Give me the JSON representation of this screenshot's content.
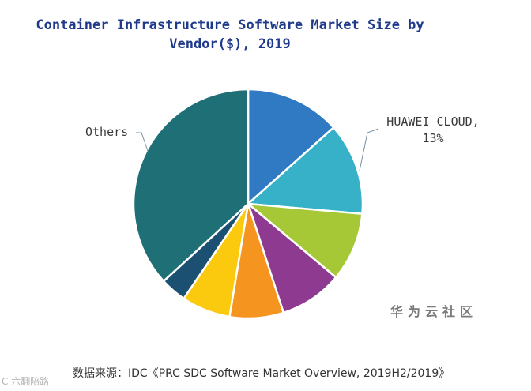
{
  "chart_data": {
    "type": "pie",
    "title_line1": "Container Infrastructure Software Market Size by",
    "title_line2": "Vendor($), 2019",
    "slices": [
      {
        "label": "",
        "value": 13.4,
        "color": "#2f7ac2"
      },
      {
        "label": "HUAWEI CLOUD, 13%",
        "value": 13.0,
        "color": "#37b1c8"
      },
      {
        "label": "",
        "value": 9.7,
        "color": "#a6c837"
      },
      {
        "label": "",
        "value": 8.9,
        "color": "#8f3a91"
      },
      {
        "label": "",
        "value": 7.6,
        "color": "#f5941f"
      },
      {
        "label": "",
        "value": 6.9,
        "color": "#fbc90e"
      },
      {
        "label": "",
        "value": 3.7,
        "color": "#1c5073"
      },
      {
        "label": "Others",
        "value": 36.8,
        "color": "#1f6f77"
      }
    ]
  },
  "labels": {
    "huawei_line1": "HUAWEI CLOUD,",
    "huawei_line2": "13%",
    "others": "Others"
  },
  "watermark": "华为云社区",
  "source": "数据来源：IDC《PRC SDC Software Market Overview, 2019H2/2019》",
  "corner_mark": "C 六翻陪路"
}
